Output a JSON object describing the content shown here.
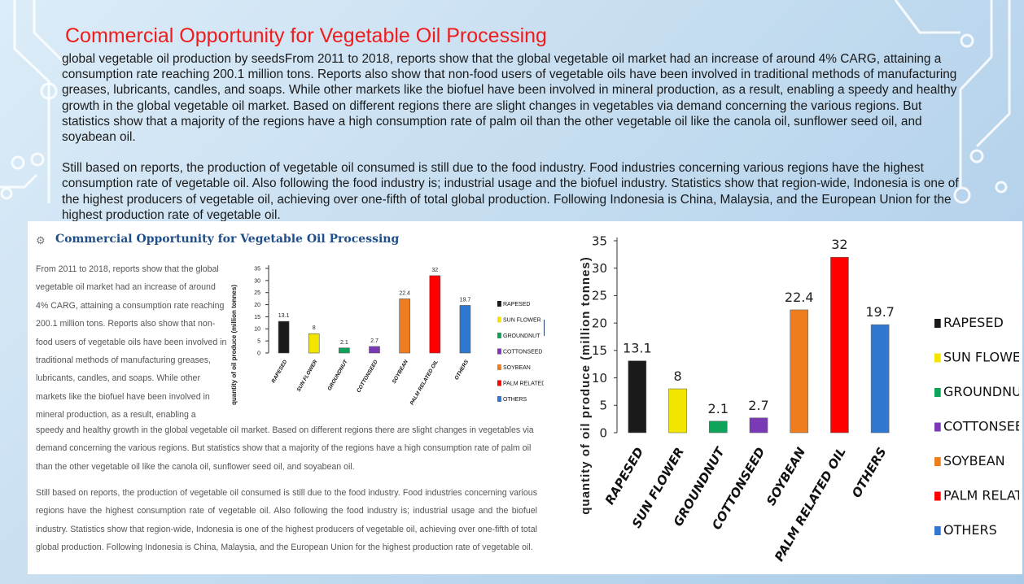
{
  "slide": {
    "title": "Commercial Opportunity for Vegetable Oil Processing",
    "paragraph1": "global vegetable oil production by seedsFrom 2011 to 2018, reports show that the global vegetable oil market had an increase of around 4% CARG, attaining a consumption rate reaching 200.1 million tons. Reports also show that non-food users of vegetable oils have been involved in traditional methods of manufacturing greases, lubricants, candles, and soaps. While other markets like the biofuel have been involved in mineral production, as a result, enabling a speedy and healthy growth in the global vegetable oil market. Based on different regions there are slight changes in vegetables via demand concerning the various regions. But statistics show that a majority of the regions have a high consumption rate of palm oil than the other vegetable oil like the canola oil, sunflower seed oil, and soyabean oil.",
    "paragraph2": "Still based on reports, the production of vegetable oil consumed is still due to the food industry. Food industries concerning various regions have the highest consumption rate of vegetable oil. Also following the food industry is; industrial usage and the biofuel industry. Statistics show that region-wide, Indonesia is one of the highest producers of vegetable oil, achieving over one-fifth of total global production. Following Indonesia is China, Malaysia, and the European Union for the highest production rate of vegetable oil."
  },
  "article": {
    "title": "Commercial Opportunity for Vegetable Oil Processing",
    "col_text": "From 2011 to 2018, reports show that the global vegetable oil market had an increase of around 4% CARG, attaining a consumption rate reaching 200.1 million tons. Reports also show that non-food users of vegetable oils have been involved in traditional methods of manufacturing greases, lubricants, candles, and soaps. While other markets like the biofuel have been involved in mineral production, as a result, enabling a",
    "cont_text": "speedy and healthy growth in the global vegetable oil market. Based on different regions there are slight changes in vegetables via demand concerning the various regions. But statistics show that a majority of the regions have a high consumption rate of palm oil than the other vegetable oil like the canola oil, sunflower seed oil, and soyabean oil.",
    "paragraph2": "Still based on reports, the production of vegetable oil consumed is still due to the food industry. Food industries concerning various regions have the highest consumption rate of vegetable oil. Also following the food industry is; industrial usage and the biofuel industry. Statistics show that region-wide, Indonesia is one of the highest producers of vegetable oil, achieving over one-fifth of total global production. Following Indonesia is China, Malaysia, and the European Union for the highest production rate of vegetable oil."
  },
  "chart_data": [
    {
      "id": "small",
      "type": "bar",
      "ylabel": "quantity of oil produce (million tonnes)",
      "ylim": [
        0,
        35
      ],
      "yticks": [
        0,
        5,
        10,
        15,
        20,
        25,
        30,
        35
      ],
      "categories": [
        "RAPESED",
        "SUN FLOWER",
        "GROUNDNUT",
        "COTTONSEED",
        "SOYBEAN",
        "PALM RELATED OIL",
        "OTHERS"
      ],
      "values": [
        13.1,
        8,
        2.1,
        2.7,
        22.4,
        32,
        19.7
      ],
      "value_labels": [
        "13.1",
        "8",
        "2.1",
        "2.7",
        "22.4",
        "32",
        "19.7"
      ],
      "colors": [
        "#1a1a1a",
        "#f2e600",
        "#0fa35a",
        "#7a39b5",
        "#ee7d1e",
        "#ff0000",
        "#2f77cf"
      ],
      "legend": [
        "RAPESED",
        "SUN FLOWER",
        "GROUNDNUT",
        "COTTONSEED",
        "SOYBEAN",
        "PALM RELATED OIL",
        "OTHERS"
      ],
      "legend_position": "right"
    },
    {
      "id": "large",
      "type": "bar",
      "ylabel": "quantity of oil produce (million tonnes)",
      "ylim": [
        0,
        35
      ],
      "yticks": [
        0,
        5,
        10,
        15,
        20,
        25,
        30,
        35
      ],
      "categories": [
        "RAPESED",
        "SUN FLOWER",
        "GROUNDNUT",
        "COTTONSEED",
        "SOYBEAN",
        "PALM RELATED OIL",
        "OTHERS"
      ],
      "values": [
        13.1,
        8,
        2.1,
        2.7,
        22.4,
        32,
        19.7
      ],
      "value_labels": [
        "13.1",
        "8",
        "2.1",
        "2.7",
        "22.4",
        "32",
        "19.7"
      ],
      "colors": [
        "#1a1a1a",
        "#f2e600",
        "#0fa35a",
        "#7a39b5",
        "#ee7d1e",
        "#ff0000",
        "#2f77cf"
      ],
      "legend": [
        "RAPESED",
        "SUN FLOWER",
        "GROUNDNUT",
        "COTTONSEED",
        "SOYBEAN",
        "PALM RELATED OIL",
        "OTHERS"
      ],
      "legend_position": "right"
    }
  ]
}
